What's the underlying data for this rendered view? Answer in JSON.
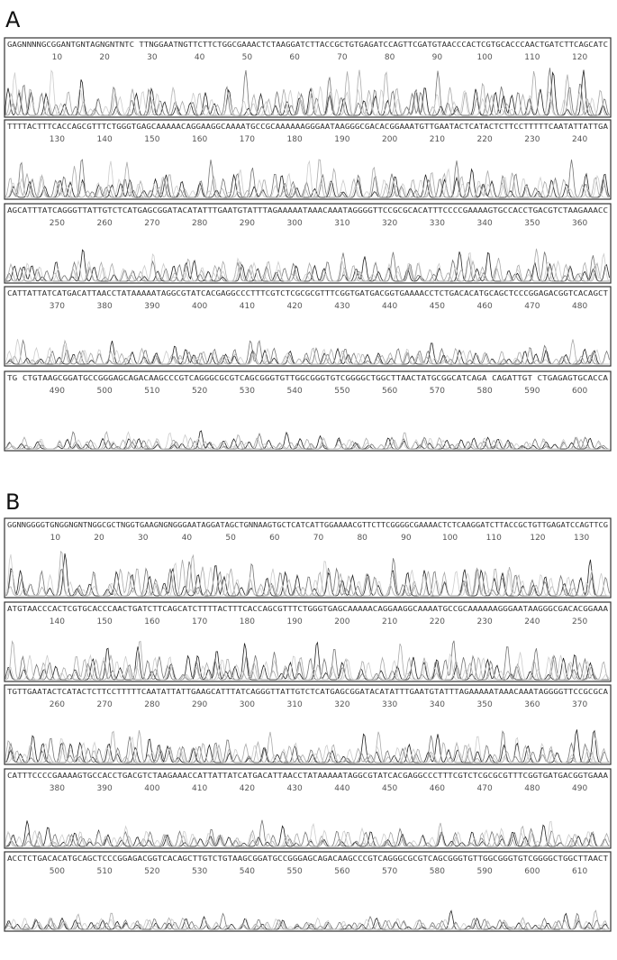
{
  "panels": [
    {
      "label": "A",
      "rows": [
        {
          "sequence": "GAGNNNNGCGGANTGNTAGNGNTNTC TTNGGAATNGTTCTTCTGGCGAAACTCTAAGGATCTTACCGCTGTGAGATCCAGTTCGATGTAACCCACTCGTGCACCCAACTGATCTTCAGCATC",
          "positions": [
            10,
            20,
            30,
            40,
            50,
            60,
            70,
            80,
            90,
            100,
            110,
            120
          ]
        },
        {
          "sequence": "TTTTACTTTCACCAGCGTTTCTGGGTGAGCAAAAACAGGAAGGCAAAATGCCGCAAAAAAGGGAATAAGGGCGACACGGAAATGTTGAATACTCATACTCTTCCTTTTTCAATATTATTGA",
          "positions": [
            130,
            140,
            150,
            160,
            170,
            180,
            190,
            200,
            210,
            220,
            230,
            240
          ]
        },
        {
          "sequence": "AGCATTTATCAGGGTTATTGTCTCATGAGCGGATACATATTTGAATGTATTTAGAAAAATAAACAAATAGGGGTTCCGCGCACATTTCCCCGAAAAGTGCCACCTGACGTCTAAGAAACC",
          "positions": [
            250,
            260,
            270,
            280,
            290,
            300,
            310,
            320,
            330,
            340,
            350,
            360
          ]
        },
        {
          "sequence": "CATTATTATCATGACATTAACCTATAAAAATAGGCGTATCACGAGGCCCTTTCGTCTCGCGCGTTTCGGTGATGACGGTGAAAACCTCTGACACATGCAGCTCCCGGAGACGGTCACAGCT",
          "positions": [
            370,
            380,
            390,
            400,
            410,
            420,
            430,
            440,
            450,
            460,
            470,
            480
          ]
        },
        {
          "sequence": "TG CTGTAAGCGGATGCCGGGAGCAGACAAGCCCGTCAGGGCGCGTCAGCGGGTGTTGGCGGGTGTCGGGGCTGGCTTAACTATGCGGCATCAGA CAGATTGT CTGAGAGTGCACCA",
          "positions": [
            490,
            500,
            510,
            520,
            530,
            540,
            550,
            560,
            570,
            580,
            590,
            600
          ]
        }
      ]
    },
    {
      "label": "B",
      "rows": [
        {
          "sequence": "GGNNGGGGTGNGGNGNTNGGCGCTNGGTGAAGNGNGGGAATAGGATAGCTGNNAAGTGCTCATCATTGGAAAACGTTCTTCGGGGCGAAAACTCTCAAGGATCTTACCGCTGTTGAGATCCAGTTCG",
          "positions": [
            10,
            20,
            30,
            40,
            50,
            60,
            70,
            80,
            90,
            100,
            110,
            120,
            130
          ]
        },
        {
          "sequence": "ATGTAACCCACTCGTGCACCCAACTGATCTTCAGCATCTTTTACTTTCACCAGCGTTTCTGGGTGAGCAAAAACAGGAAGGCAAAATGCCGCAAAAAAGGGAATAAGGGCGACACGGAAA",
          "positions": [
            140,
            150,
            160,
            170,
            180,
            190,
            200,
            210,
            220,
            230,
            240,
            250
          ]
        },
        {
          "sequence": "TGTTGAATACTCATACTCTTCCTTTTTCAATATTATTGAAGCATTTATCAGGGTTATTGTCTCATGAGCGGATACATATTTGAATGTATTTAGAAAAATAAACAAATAGGGGTTCCGCGCA",
          "positions": [
            260,
            270,
            280,
            290,
            300,
            310,
            320,
            330,
            340,
            350,
            360,
            370
          ]
        },
        {
          "sequence": "CATTTCCCCGAAAAGTGCCACCTGACGTCTAAGAAACCATTATTATCATGACATTAACCTATAAAAATAGGCGTATCACGAGGCCCTTTCGTCTCGCGCGTTTCGGTGATGACGGTGAAA",
          "positions": [
            380,
            390,
            400,
            410,
            420,
            430,
            440,
            450,
            460,
            470,
            480,
            490
          ]
        },
        {
          "sequence": "ACCTCTGACACATGCAGCTCCCGGAGACGGTCACAGCTTGTCTGTAAGCGGATGCCGGGAGCAGACAAGCCCGTCAGGGCGCGTCAGCGGGTGTTGGCGGGTGTCGGGGCTGGCTTAACT",
          "positions": [
            500,
            510,
            520,
            530,
            540,
            550,
            560,
            570,
            580,
            590,
            600,
            610
          ]
        }
      ]
    }
  ]
}
